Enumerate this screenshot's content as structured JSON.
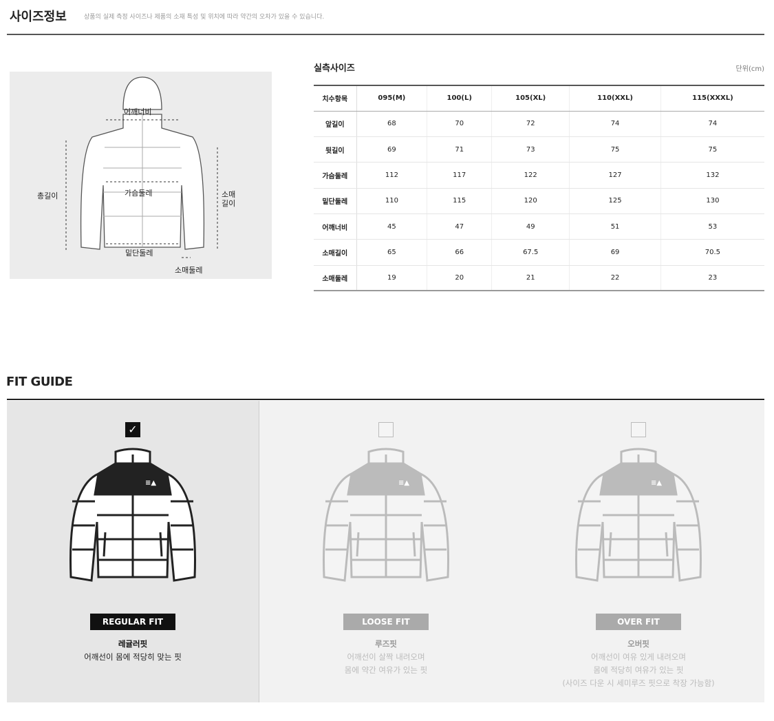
{
  "header": {
    "title": "사이즈정보",
    "notice": "상품의 실제 측정 사이즈나 제품의 소재 특성 및 위치에 따라 약간의 오차가 있을 수 있습니다."
  },
  "diagram": {
    "labels": {
      "shoulder": "어깨너비",
      "total_length": "총길이",
      "chest": "가슴둘레",
      "hem": "밑단둘레",
      "sleeve_length": "소매\n길이",
      "sleeve_cuff": "소매둘레"
    }
  },
  "size_table": {
    "title": "실측사이즈",
    "unit": "단위(cm)",
    "headers": [
      "치수항목",
      "095(M)",
      "100(L)",
      "105(XL)",
      "110(XXL)",
      "115(XXXL)"
    ],
    "rows": [
      [
        "앞길이",
        "68",
        "70",
        "72",
        "74",
        "74"
      ],
      [
        "뒷길이",
        "69",
        "71",
        "73",
        "75",
        "75"
      ],
      [
        "가슴둘레",
        "112",
        "117",
        "122",
        "127",
        "132"
      ],
      [
        "밑단둘레",
        "110",
        "115",
        "120",
        "125",
        "130"
      ],
      [
        "어깨너비",
        "45",
        "47",
        "49",
        "51",
        "53"
      ],
      [
        "소매길이",
        "65",
        "66",
        "67.5",
        "69",
        "70.5"
      ],
      [
        "소매둘레",
        "19",
        "20",
        "21",
        "22",
        "23"
      ]
    ]
  },
  "fit_guide": {
    "title": "FIT GUIDE",
    "check_mark": "✓",
    "options": [
      {
        "tag": "REGULAR FIT",
        "name": "레귤러핏",
        "desc": [
          "어깨선이 몸에 적당히 맞는 핏"
        ],
        "selected": true
      },
      {
        "tag": "LOOSE FIT",
        "name": "루즈핏",
        "desc": [
          "어깨선이 살짝 내려오며",
          "몸에 약간 여유가 있는 핏"
        ],
        "selected": false
      },
      {
        "tag": "OVER FIT",
        "name": "오버핏",
        "desc": [
          "어깨선이 여유 있게 내려오며",
          "몸에 적당히 여유가 있는 핏",
          "(사이즈 다운 시 세미루즈 핏으로 착장 가능함)"
        ],
        "selected": false
      }
    ]
  }
}
